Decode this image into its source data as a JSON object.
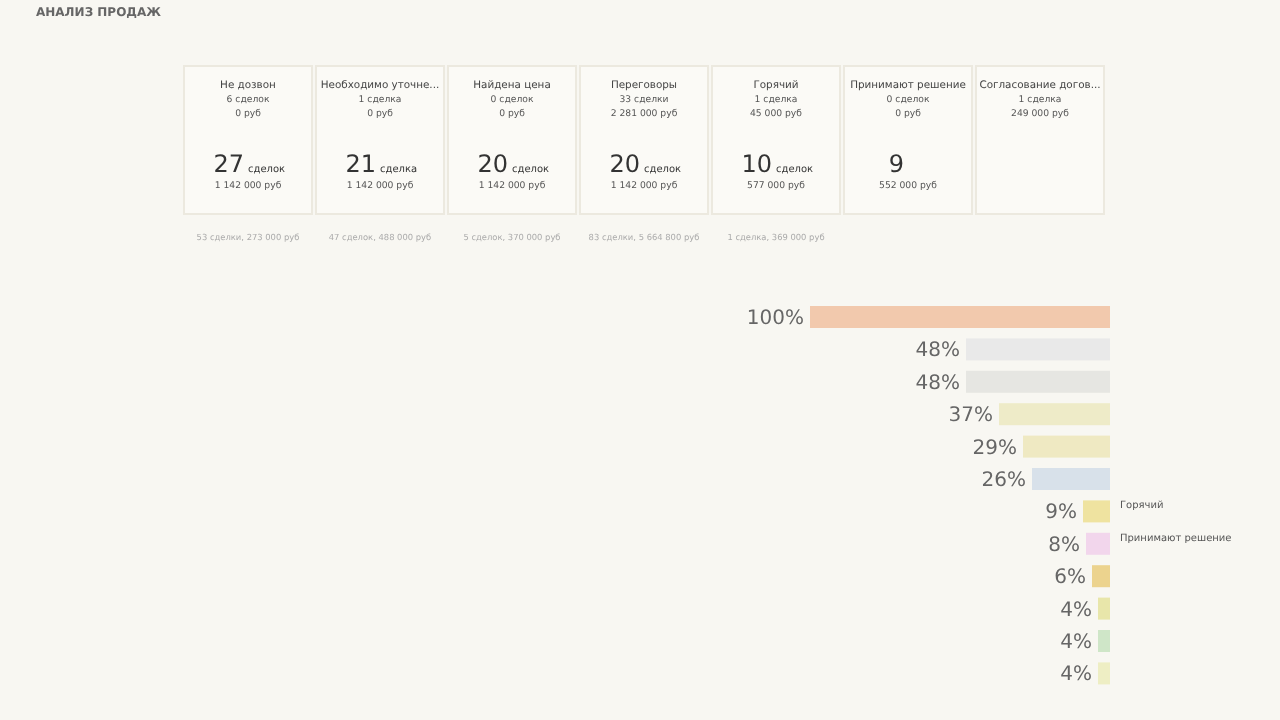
{
  "chart_data": [
    {
      "type": "other",
      "title": "АНАЛИЗ ПРОДАЖ",
      "categories": [
        "Не дозвон",
        "Необходимо уточне...",
        "Найдена цена",
        "Переговоры",
        "Горячий",
        "Принимают решение",
        "Согласование догов..."
      ],
      "cell_labels": [
        [
          "6 сделок",
          "0 руб",
          "27",
          "сделок",
          "1 142 000 руб",
          "53 сделки, 273 000 руб"
        ],
        [
          "1 сделка",
          "0 руб",
          "21",
          "сделка",
          "1 142 000 руб",
          "47 сделок, 488 000 руб"
        ],
        [
          "0 сделок",
          "0 руб",
          "20",
          "сделок",
          "1 142 000 руб",
          "5 сделок, 370 000 руб"
        ],
        [
          "33 сделки",
          "2 281 000 руб",
          "20",
          "сделок",
          "1 142 000 руб",
          "83 сделки, 5 664 800 руб"
        ],
        [
          "1 сделка",
          "45 000 руб",
          "10",
          "сделок",
          "577 000 руб",
          "1 сделка, 369 000 руб"
        ],
        [
          "0 сделок",
          "0 руб",
          "9",
          null,
          "552 000 руб",
          null
        ],
        [
          "1 сделка",
          "249 000 руб",
          null,
          null,
          null,
          null
        ]
      ]
    },
    {
      "type": "bar",
      "orientation": "horizontal",
      "categories": [
        null,
        null,
        null,
        null,
        null,
        null,
        "Горячий",
        "Принимают решение",
        null,
        null,
        null,
        null
      ],
      "values": [
        100,
        48,
        48,
        37,
        29,
        26,
        9,
        8,
        6,
        4,
        4,
        4
      ],
      "value_labels": [
        "100%",
        "48%",
        "48%",
        "37%",
        "29%",
        "26%",
        "9%",
        "8%",
        "6%",
        "4%",
        "4%",
        "4%"
      ],
      "colors": [
        "#f2c9ad",
        "#e9e9e9",
        "#e6e6e2",
        "#eeebc8",
        "#efe9c2",
        "#d8e1ea",
        "#efe3a0",
        "#f2d6ec",
        "#ecd38e",
        "#e8e6aa",
        "#cfe6c8",
        "#eeeec4"
      ]
    }
  ]
}
